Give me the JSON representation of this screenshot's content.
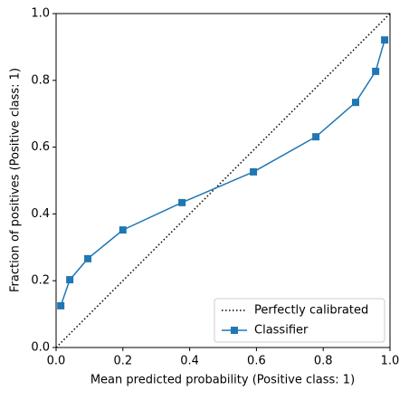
{
  "chart_data": {
    "type": "line",
    "xlabel": "Mean predicted probability (Positive class: 1)",
    "ylabel": "Fraction of positives (Positive class: 1)",
    "xlim": [
      0,
      1
    ],
    "ylim": [
      0,
      1
    ],
    "xticks": [
      {
        "value": 0,
        "label": "0.0"
      },
      0.2,
      0.4,
      0.6,
      0.8,
      {
        "value": 1,
        "label": "1.0"
      }
    ],
    "yticks": [
      {
        "value": 0,
        "label": "0.0"
      },
      0.2,
      0.4,
      0.6,
      0.8,
      {
        "value": 1,
        "label": "1.0"
      }
    ],
    "legend": "lower right",
    "series": [
      {
        "name": "Perfectly calibrated",
        "color": "#000000",
        "linestyle": "dotted",
        "x": [
          0,
          1
        ],
        "values": [
          0,
          1
        ]
      },
      {
        "name": "Classifier",
        "color": "#1f77b4",
        "linestyle": "solid",
        "marker": "square",
        "x": [
          0.014,
          0.041,
          0.095,
          0.2,
          0.377,
          0.591,
          0.778,
          0.897,
          0.957,
          0.984
        ],
        "values": [
          0.125,
          0.203,
          0.266,
          0.352,
          0.434,
          0.526,
          0.631,
          0.734,
          0.827,
          0.921
        ]
      }
    ]
  }
}
